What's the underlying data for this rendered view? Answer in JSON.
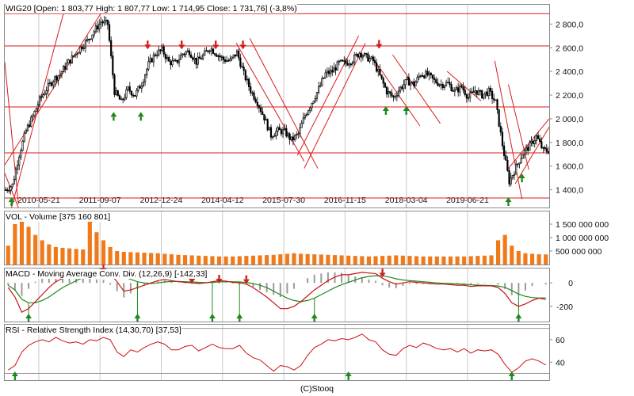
{
  "colors": {
    "background": "#ffffff",
    "frame": "#8a8a8a",
    "grid": "#c8c8c8",
    "trend_line": "#d81b1b",
    "candle": "#000000",
    "volume_bar": "#f07a1a",
    "macd_line": "#cc1111",
    "signal_line": "#1f8a1f",
    "histogram": "#9a9a9a",
    "rsi_line": "#cc1111",
    "buy_marker": "#1d8a1d",
    "sell_marker": "#d81b1b"
  },
  "footer": "(C)Stooq",
  "x_tick_labels": [
    "2010-05-21",
    "2011-09-07",
    "2012-12-24",
    "2014-04-12",
    "2015-07-30",
    "2016-11-15",
    "2018-03-04",
    "2019-06-21"
  ],
  "chart_data": [
    {
      "type": "candlestick",
      "panel": "price",
      "title": "WIG20 [Open: 1 803,77  High: 1 807,77  Low: 1 714,95  Close: 1 731,76] (-3,8%)",
      "ylim": [
        1250,
        2970
      ],
      "yticks": [
        1400,
        1600,
        1800,
        2000,
        2200,
        2400,
        2600,
        2800
      ],
      "ytick_labels": [
        "1 400,0",
        "1 600,0",
        "1 800,0",
        "2 000,0",
        "2 200,0",
        "2 400,0",
        "2 600,0",
        "2 800,0"
      ],
      "x_ticks_at_index": [
        5,
        14,
        23,
        32,
        41,
        50,
        59,
        68
      ],
      "candles": 80,
      "close_path": [
        1400,
        1440,
        1700,
        1900,
        2020,
        2160,
        2250,
        2330,
        2380,
        2460,
        2530,
        2600,
        2660,
        2740,
        2820,
        2800,
        2230,
        2140,
        2250,
        2200,
        2300,
        2460,
        2550,
        2580,
        2480,
        2470,
        2550,
        2570,
        2480,
        2530,
        2600,
        2550,
        2500,
        2490,
        2560,
        2380,
        2240,
        2140,
        2010,
        1860,
        1900,
        1890,
        1820,
        1870,
        2030,
        2140,
        2250,
        2380,
        2400,
        2470,
        2470,
        2500,
        2560,
        2520,
        2490,
        2360,
        2230,
        2180,
        2260,
        2320,
        2290,
        2380,
        2370,
        2320,
        2290,
        2300,
        2230,
        2270,
        2180,
        2240,
        2200,
        2230,
        2140,
        1780,
        1470,
        1590,
        1710,
        1770,
        1850,
        1732
      ],
      "horizontal_lines": [
        1712,
        1330,
        2100,
        2615,
        2888
      ],
      "trend_segments": [
        {
          "from": [
            0,
            1540
          ],
          "to": [
            2,
            1250
          ]
        },
        {
          "from": [
            0,
            2480
          ],
          "to": [
            2,
            1280
          ]
        },
        {
          "from": [
            0,
            1610
          ],
          "to": [
            15,
            2970
          ]
        },
        {
          "from": [
            1,
            1250
          ],
          "to": [
            9,
            2970
          ]
        },
        {
          "from": [
            34,
            2640
          ],
          "to": [
            44,
            1640
          ]
        },
        {
          "from": [
            36,
            2680
          ],
          "to": [
            46,
            1580
          ]
        },
        {
          "from": [
            43,
            1690
          ],
          "to": [
            52,
            2700
          ]
        },
        {
          "from": [
            44,
            1580
          ],
          "to": [
            53,
            2640
          ]
        },
        {
          "from": [
            54,
            2520
          ],
          "to": [
            61,
            1940
          ]
        },
        {
          "from": [
            57,
            2540
          ],
          "to": [
            64,
            1960
          ]
        },
        {
          "from": [
            65,
            2400
          ],
          "to": [
            70,
            2150
          ]
        },
        {
          "from": [
            72,
            2490
          ],
          "to": [
            76,
            1320
          ]
        },
        {
          "from": [
            74,
            2290
          ],
          "to": [
            77,
            1570
          ]
        },
        {
          "from": [
            75,
            1450
          ],
          "to": [
            80,
            1930
          ]
        },
        {
          "from": [
            74,
            1580
          ],
          "to": [
            80,
            2000
          ]
        }
      ],
      "sell_signals_at": [
        [
          21,
          2660
        ],
        [
          26,
          2660
        ],
        [
          31,
          2660
        ],
        [
          35,
          2660
        ],
        [
          55,
          2665
        ]
      ],
      "buy_signals_at": [
        [
          1,
          1270
        ],
        [
          16,
          1990
        ],
        [
          20,
          1990
        ],
        [
          56,
          2040
        ],
        [
          59,
          2040
        ],
        [
          74,
          1270
        ],
        [
          76,
          1470
        ]
      ]
    },
    {
      "type": "bar",
      "panel": "volume",
      "title": "VOL - Volume [375 160 801]",
      "ylim": [
        0,
        2000000000
      ],
      "yticks": [
        500000000,
        1000000000,
        1500000000
      ],
      "ytick_labels": [
        "500 000 000",
        "1 000 000 000",
        "1 500 000 000"
      ],
      "values": [
        700,
        1500,
        1700,
        1400,
        1100,
        900,
        750,
        650,
        620,
        600,
        580,
        560,
        1600,
        1200,
        900,
        650,
        500,
        470,
        460,
        450,
        440,
        430,
        420,
        400,
        380,
        360,
        350,
        340,
        330,
        320,
        310,
        300,
        300,
        300,
        310,
        320,
        330,
        340,
        350,
        360,
        380,
        400,
        420,
        400,
        390,
        380,
        370,
        360,
        350,
        340,
        330,
        320,
        310,
        300,
        310,
        320,
        330,
        340,
        330,
        320,
        310,
        300,
        300,
        300,
        300,
        300,
        300,
        300,
        310,
        320,
        330,
        340,
        900,
        1100,
        700,
        500,
        420,
        400,
        380,
        375
      ]
    },
    {
      "type": "line",
      "panel": "macd",
      "title": "MACD - Moving Average Conv. Div. (12,26,9) [-142,33]",
      "ylim": [
        -330,
        130
      ],
      "yticks": [
        0,
        -200
      ],
      "ytick_labels": [
        "0",
        "-200"
      ],
      "series": [
        {
          "values": [
            -40,
            -120,
            -250,
            -220,
            -160,
            -100,
            -40,
            10,
            40,
            60,
            80,
            90,
            100,
            110,
            120,
            80,
            10,
            -70,
            -60,
            -40,
            -20,
            0,
            20,
            30,
            20,
            10,
            5,
            0,
            -5,
            0,
            10,
            20,
            15,
            5,
            0,
            -10,
            -40,
            -80,
            -120,
            -170,
            -220,
            -220,
            -200,
            -160,
            -110,
            -60,
            -20,
            20,
            50,
            70,
            70,
            80,
            90,
            85,
            80,
            40,
            10,
            -10,
            0,
            10,
            5,
            0,
            -5,
            -10,
            -10,
            -15,
            -20,
            -20,
            -30,
            -25,
            -25,
            -25,
            -40,
            -90,
            -170,
            -200,
            -180,
            -150,
            -130,
            -142
          ]
        },
        {
          "values": [
            -20,
            -60,
            -140,
            -170,
            -170,
            -150,
            -120,
            -80,
            -40,
            -10,
            20,
            45,
            65,
            80,
            95,
            95,
            80,
            55,
            30,
            10,
            0,
            -5,
            0,
            8,
            12,
            12,
            10,
            8,
            5,
            3,
            4,
            8,
            10,
            10,
            8,
            4,
            -6,
            -20,
            -40,
            -70,
            -100,
            -130,
            -150,
            -160,
            -150,
            -130,
            -100,
            -70,
            -40,
            -15,
            5,
            25,
            45,
            55,
            62,
            60,
            50,
            35,
            25,
            20,
            15,
            10,
            5,
            0,
            -3,
            -6,
            -9,
            -12,
            -16,
            -19,
            -21,
            -22,
            -26,
            -38,
            -65,
            -95,
            -115,
            -125,
            -130,
            -128
          ]
        }
      ],
      "crossover_sell_at": [
        14,
        27,
        31,
        35,
        55
      ],
      "crossover_buy_at": [
        3,
        19,
        30,
        34,
        45,
        75
      ]
    },
    {
      "type": "line",
      "panel": "rsi",
      "title": "RSI - Relative Strength Index (14,30,70) [37,53]",
      "ylim": [
        24,
        74
      ],
      "yticks": [
        60,
        40
      ],
      "ytick_labels": [
        "60",
        "40"
      ],
      "reference_levels": [
        30,
        70
      ],
      "values": [
        33,
        37,
        49,
        55,
        58,
        60,
        58,
        62,
        59,
        57,
        58,
        56,
        60,
        59,
        62,
        60,
        49,
        45,
        51,
        49,
        53,
        56,
        58,
        56,
        51,
        51,
        54,
        55,
        50,
        53,
        56,
        53,
        52,
        52,
        55,
        48,
        44,
        42,
        37,
        32,
        37,
        36,
        33,
        37,
        46,
        53,
        56,
        60,
        59,
        61,
        60,
        62,
        65,
        60,
        58,
        51,
        47,
        46,
        52,
        55,
        53,
        57,
        55,
        52,
        51,
        52,
        49,
        52,
        48,
        51,
        50,
        51,
        47,
        38,
        31,
        35,
        41,
        43,
        41,
        37.5
      ],
      "buy_signals_at": [
        1,
        50,
        74
      ]
    }
  ]
}
